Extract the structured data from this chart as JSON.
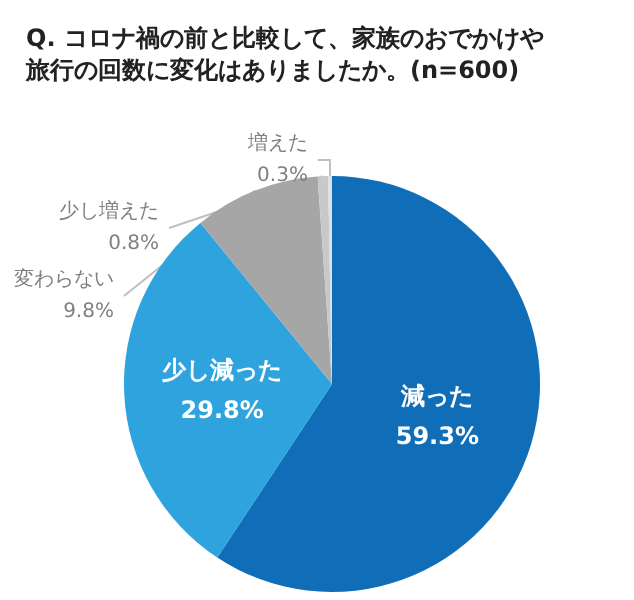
{
  "chart_data": {
    "type": "pie",
    "title": "Q. コロナ禍の前と比較して、家族のおでかけや旅行の回数に変化はありましたか。(n=600)",
    "categories": [
      "減った",
      "少し減った",
      "変わらない",
      "少し増えた",
      "増えた"
    ],
    "values": [
      59.3,
      29.8,
      9.8,
      0.8,
      0.3
    ],
    "value_labels": [
      "59.3%",
      "29.8%",
      "9.8%",
      "0.8%",
      "0.3%"
    ],
    "colors": [
      "#106eb8",
      "#2ea3dd",
      "#a6a6a6",
      "#c8c8c8",
      "#e0e0e0"
    ],
    "legend": false
  }
}
